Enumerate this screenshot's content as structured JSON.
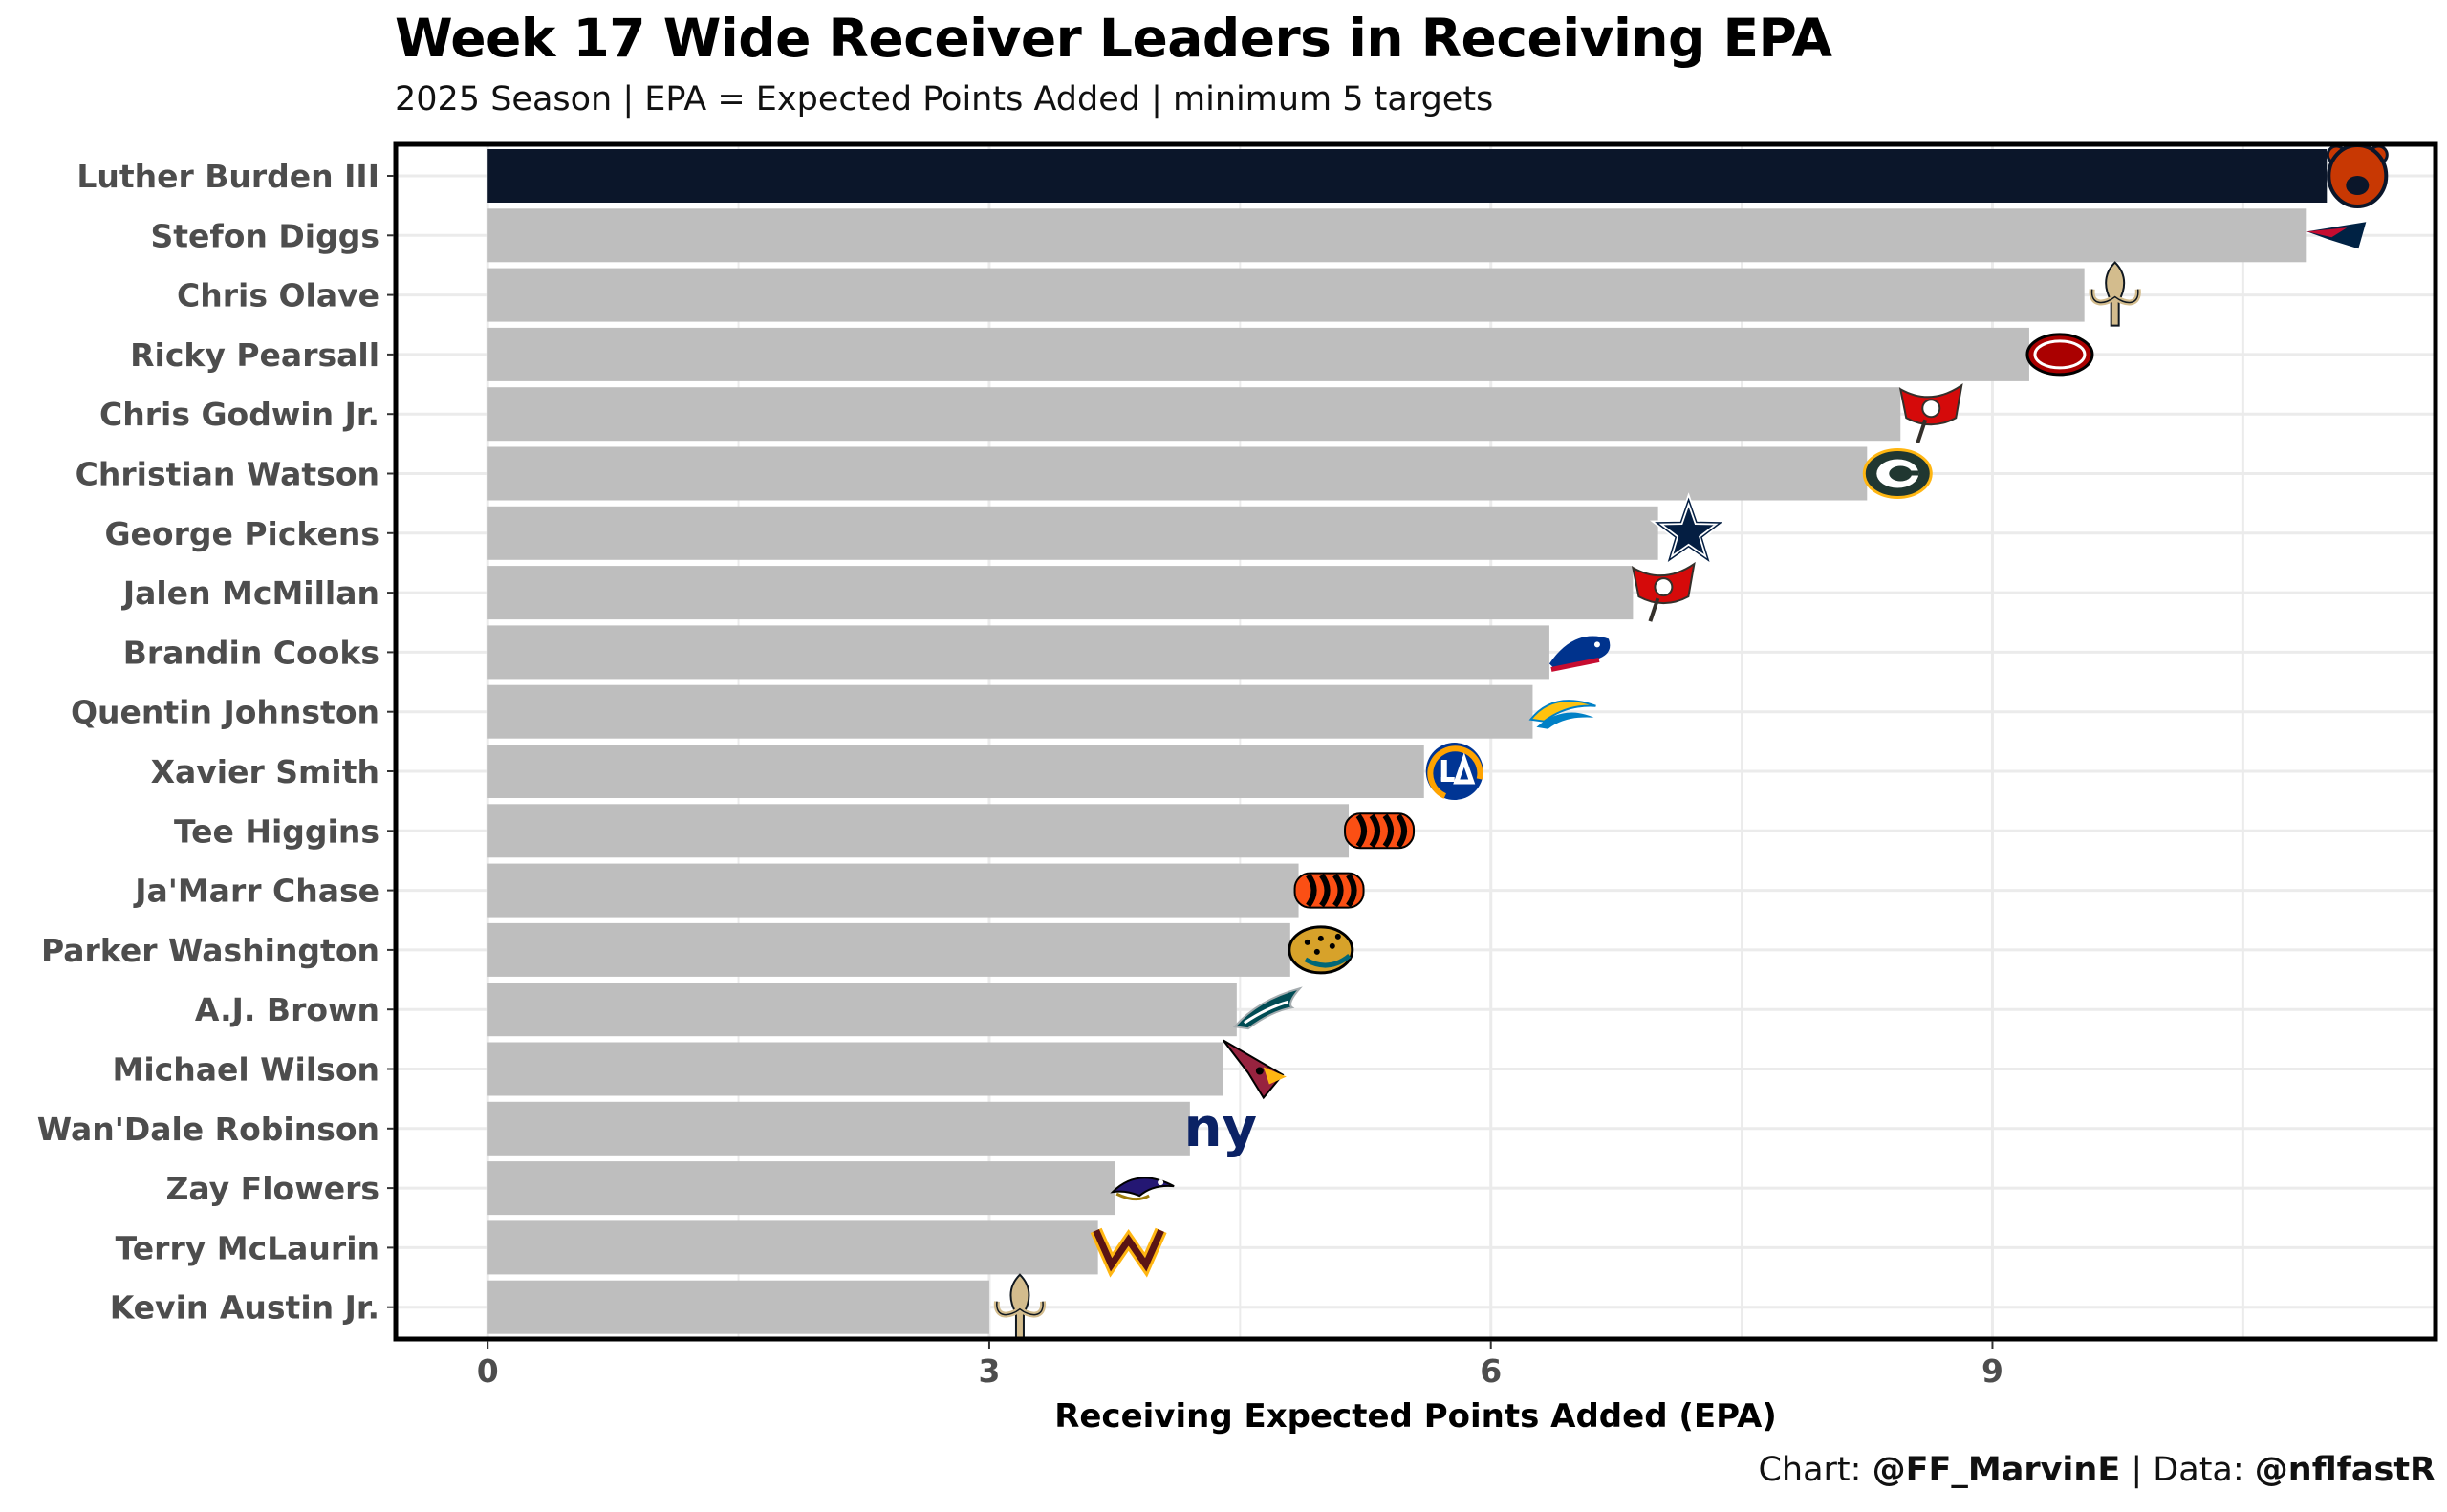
{
  "chart_data": {
    "type": "bar",
    "orientation": "horizontal",
    "title": "Week 17 Wide Receiver Leaders in Receiving EPA",
    "subtitle": "2025 Season | EPA = Expected Points Added | minimum 5 targets",
    "xlabel": "Receiving Expected Points Added (EPA)",
    "ylabel": "",
    "xlim": [
      -0.55,
      11.65
    ],
    "xticks": [
      0,
      3,
      6,
      9
    ],
    "grid": true,
    "categories": [
      "Luther Burden III",
      "Stefon Diggs",
      "Chris Olave",
      "Ricky Pearsall",
      "Chris Godwin Jr.",
      "Christian Watson",
      "George Pickens",
      "Jalen McMillan",
      "Brandin Cooks",
      "Quentin Johnston",
      "Xavier Smith",
      "Tee Higgins",
      "Ja'Marr Chase",
      "Parker Washington",
      "A.J. Brown",
      "Michael Wilson",
      "Wan'Dale Robinson",
      "Zay Flowers",
      "Terry McLaurin",
      "Kevin Austin Jr."
    ],
    "values": [
      11.0,
      10.88,
      9.55,
      9.22,
      8.45,
      8.25,
      7.0,
      6.85,
      6.35,
      6.25,
      5.6,
      5.15,
      4.85,
      4.8,
      4.48,
      4.4,
      4.2,
      3.75,
      3.65,
      3.0
    ],
    "teams": [
      "CHI",
      "NE",
      "NO",
      "SF",
      "TB",
      "GB",
      "DAL",
      "TB",
      "BUF",
      "LAC",
      "LA",
      "CIN",
      "CIN",
      "JAX",
      "PHI",
      "ARI",
      "NYG",
      "BAL",
      "WAS",
      "NO"
    ],
    "highlight_color": "#0b162a",
    "bar_color": "#bebebe"
  },
  "caption": {
    "prefix": "Chart: ",
    "author": "@FF_MarvinE",
    "separator": " | Data: ",
    "source": "@nflfastR"
  },
  "team_colors": {
    "CHI": [
      "#0b162a",
      "#c83803"
    ],
    "NE": [
      "#002244",
      "#c60c30"
    ],
    "NO": [
      "#d3bc8d",
      "#101820"
    ],
    "SF": [
      "#aa0000",
      "#b3995d"
    ],
    "TB": [
      "#d50a0a",
      "#34302b"
    ],
    "GB": [
      "#203731",
      "#ffb612"
    ],
    "DAL": [
      "#041e42",
      "#869397"
    ],
    "BUF": [
      "#00338d",
      "#c60c30"
    ],
    "LAC": [
      "#0080c6",
      "#ffc20e"
    ],
    "LA": [
      "#003594",
      "#ffa300"
    ],
    "CIN": [
      "#fb4f14",
      "#000000"
    ],
    "JAX": [
      "#006778",
      "#d7a22a"
    ],
    "PHI": [
      "#004c54",
      "#a5acaf"
    ],
    "ARI": [
      "#97233f",
      "#000000"
    ],
    "NYG": [
      "#0b2265",
      "#a71930"
    ],
    "BAL": [
      "#241773",
      "#9e7c0c"
    ],
    "WAS": [
      "#5a1414",
      "#ffb612"
    ]
  }
}
